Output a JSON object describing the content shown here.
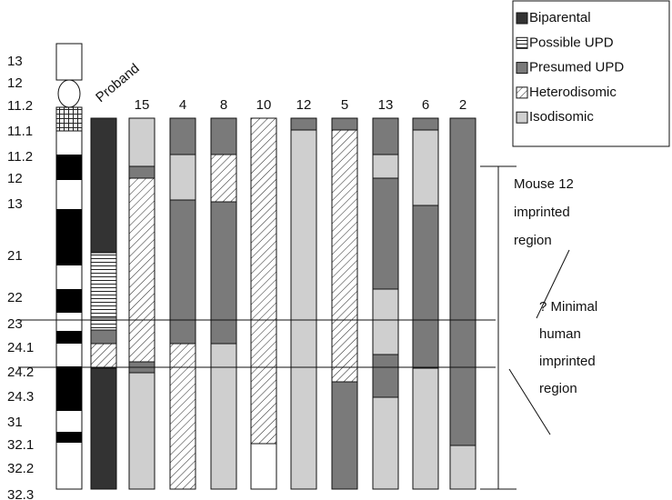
{
  "bands": [
    "13",
    "12",
    "11.2",
    "11.1",
    "11.2",
    "12",
    "13",
    "21",
    "22",
    "23",
    "24.1",
    "24.2",
    "24.3",
    "31",
    "32.1",
    "32.2",
    "32.3"
  ],
  "columns": [
    "Proband",
    "15",
    "4",
    "8",
    "10",
    "12",
    "5",
    "13",
    "6",
    "2"
  ],
  "legend": [
    "Biparental",
    "Possible UPD",
    "Presumed UPD",
    "Heterodisomic",
    "Isodisomic"
  ],
  "annotations": {
    "mouse": [
      "Mouse 12",
      "imprinted",
      "region"
    ],
    "human": [
      "? Minimal",
      "human",
      "imprinted",
      "region"
    ]
  }
}
